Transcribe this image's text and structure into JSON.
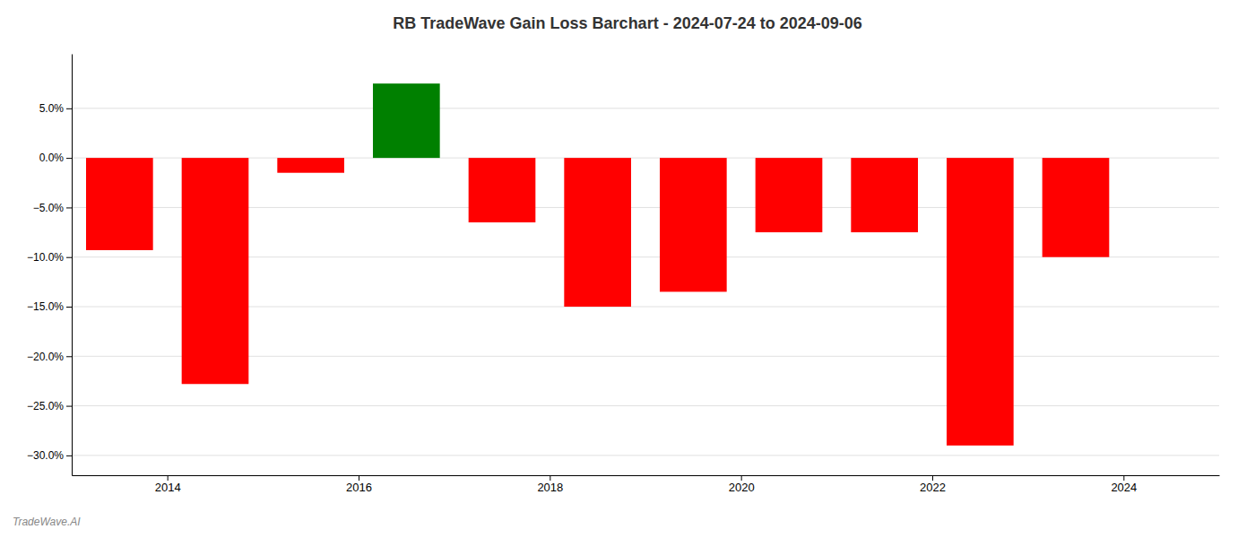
{
  "chart_data": {
    "type": "bar",
    "title": "RB TradeWave Gain Loss Barchart - 2024-07-24 to 2024-09-06",
    "annotations": [
      {
        "text": "TradeWave.AI"
      }
    ],
    "x": [
      2013.5,
      2014.5,
      2015.5,
      2016.5,
      2017.5,
      2018.5,
      2019.5,
      2020.5,
      2021.5,
      2022.5,
      2023.5
    ],
    "values": [
      -0.093,
      -0.228,
      -0.015,
      0.075,
      -0.065,
      -0.15,
      -0.135,
      -0.075,
      -0.075,
      -0.29,
      -0.1
    ],
    "colors": [
      "red",
      "red",
      "red",
      "green",
      "red",
      "red",
      "red",
      "red",
      "red",
      "red",
      "red"
    ],
    "xlim": [
      2013.0,
      2025.0
    ],
    "xticks": [
      2014,
      2016,
      2018,
      2020,
      2022,
      2024
    ],
    "ylim": [
      -0.32,
      0.105
    ],
    "yticks": [
      {
        "value": -0.3,
        "label": "−30.0%"
      },
      {
        "value": -0.25,
        "label": "−25.0%"
      },
      {
        "value": -0.2,
        "label": "−20.0%"
      },
      {
        "value": -0.15,
        "label": "−15.0%"
      },
      {
        "value": -0.1,
        "label": "−10.0%"
      },
      {
        "value": -0.05,
        "label": "−5.0%"
      },
      {
        "value": 0.0,
        "label": "0.0%"
      },
      {
        "value": 0.05,
        "label": "5.0%"
      }
    ],
    "grid": true
  }
}
